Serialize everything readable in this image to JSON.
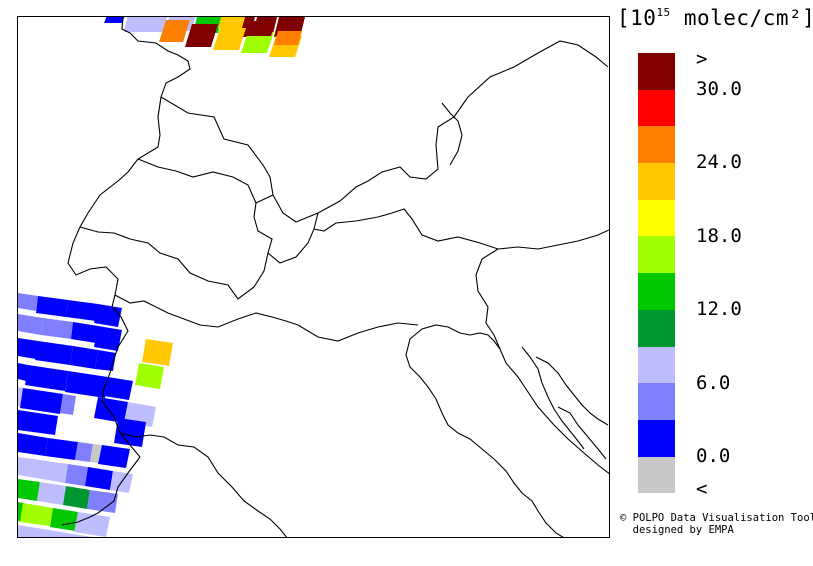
{
  "legend": {
    "unit_prefix": "[10",
    "unit_exp": "15",
    "unit_suffix": " molec/cm²]",
    "colors": [
      "#800000",
      "#ff0000",
      "#ff8000",
      "#ffc800",
      "#ffff00",
      "#a0ff00",
      "#00c800",
      "#009632",
      "#bebeff",
      "#8080ff",
      "#0000ff",
      "#c8c8c8"
    ],
    "ticks": [
      ">",
      "30.0",
      "24.0",
      "18.0",
      "12.0",
      "6.0",
      "0.0",
      "<"
    ]
  },
  "credit": {
    "line1": "© POLPO Data Visualisation Tool",
    "line2": "designed by EMPA"
  }
}
